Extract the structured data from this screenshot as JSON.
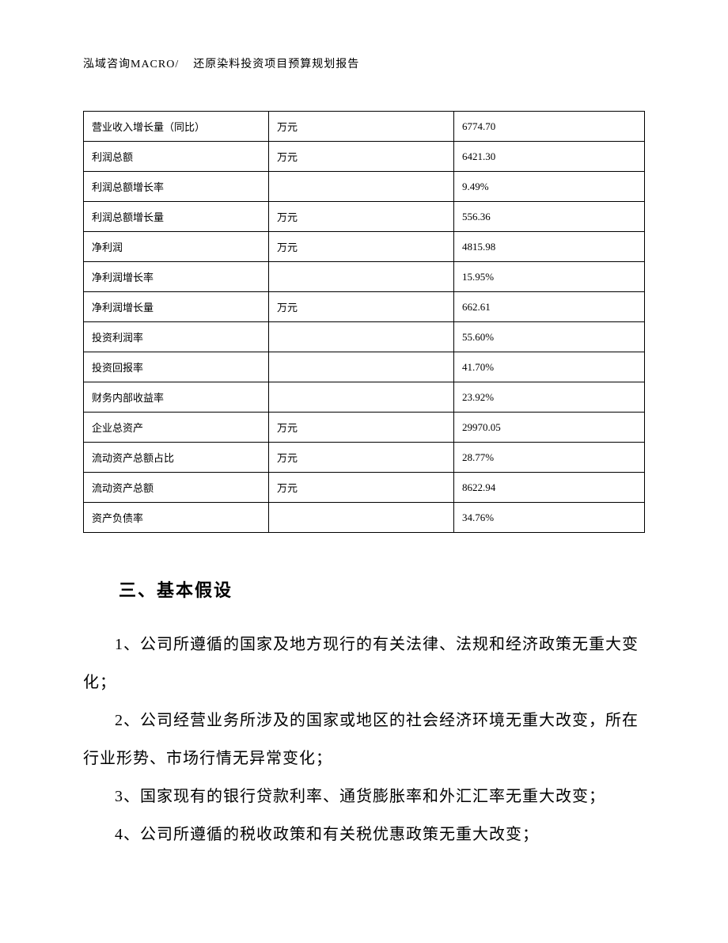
{
  "header": {
    "company": "泓域咨询MACRO/",
    "title": "还原染料投资项目预算规划报告"
  },
  "table": {
    "rows": [
      {
        "label": "营业收入增长量（同比）",
        "unit": "万元",
        "value": "6774.70"
      },
      {
        "label": "利润总额",
        "unit": "万元",
        "value": "6421.30"
      },
      {
        "label": "利润总额增长率",
        "unit": "",
        "value": "9.49%"
      },
      {
        "label": "利润总额增长量",
        "unit": "万元",
        "value": "556.36"
      },
      {
        "label": "净利润",
        "unit": "万元",
        "value": "4815.98"
      },
      {
        "label": "净利润增长率",
        "unit": "",
        "value": "15.95%"
      },
      {
        "label": "净利润增长量",
        "unit": "万元",
        "value": "662.61"
      },
      {
        "label": "投资利润率",
        "unit": "",
        "value": "55.60%"
      },
      {
        "label": "投资回报率",
        "unit": "",
        "value": "41.70%"
      },
      {
        "label": "财务内部收益率",
        "unit": "",
        "value": "23.92%"
      },
      {
        "label": "企业总资产",
        "unit": "万元",
        "value": "29970.05"
      },
      {
        "label": "流动资产总额占比",
        "unit": "万元",
        "value": "28.77%"
      },
      {
        "label": "流动资产总额",
        "unit": "万元",
        "value": "8622.94"
      },
      {
        "label": "资产负债率",
        "unit": "",
        "value": "34.76%"
      }
    ]
  },
  "section": {
    "heading": "三、基本假设",
    "paragraphs": [
      "1、公司所遵循的国家及地方现行的有关法律、法规和经济政策无重大变化；",
      "2、公司经营业务所涉及的国家或地区的社会经济环境无重大改变，所在行业形势、市场行情无异常变化；",
      "3、国家现有的银行贷款利率、通货膨胀率和外汇汇率无重大改变；",
      "4、公司所遵循的税收政策和有关税优惠政策无重大改变；"
    ]
  }
}
